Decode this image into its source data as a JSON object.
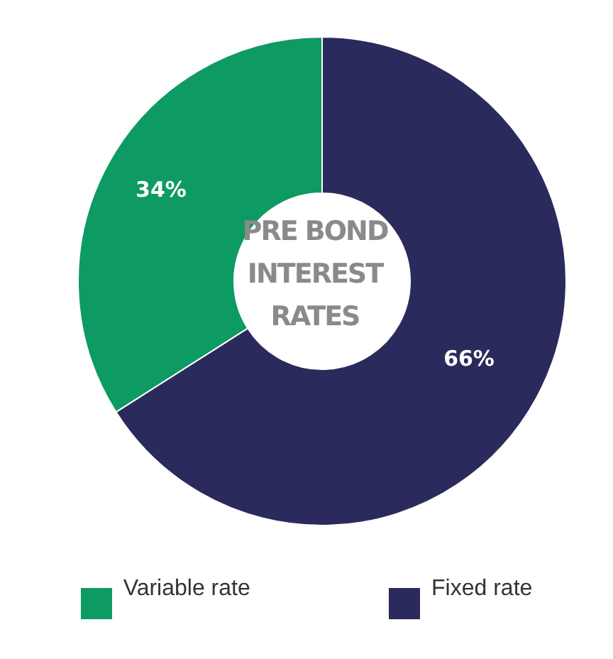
{
  "chart_data": {
    "type": "donut",
    "title": "PRE BOND INTEREST RATES",
    "categories": [
      "Variable rate",
      "Fixed rate"
    ],
    "values": [
      34,
      66
    ],
    "colors": [
      "#0e9a63",
      "#2b2a5c"
    ],
    "value_labels": [
      "34%",
      "66%"
    ],
    "legend": "bottom"
  }
}
